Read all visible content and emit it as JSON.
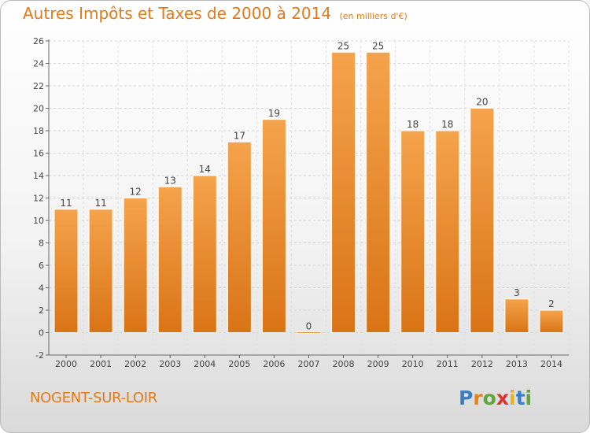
{
  "title": "Autres Impôts et Taxes de 2000 à 2014",
  "subtitle": "(en milliers d'€)",
  "location": "NOGENT-SUR-LOIR",
  "logo": {
    "text": "Proxiti",
    "letter_colors": [
      "#3a7fc4",
      "#e8831a",
      "#5ea83a",
      "#d8342b",
      "#e8b31a",
      "#3a7fc4",
      "#5ea83a"
    ]
  },
  "colors": {
    "bar_light": "#f5a34c",
    "bar_dark": "#d97416",
    "accent": "#e07b1c"
  },
  "chart_data": {
    "type": "bar",
    "title": "Autres Impôts et Taxes de 2000 à 2014",
    "subtitle": "(en milliers d'€)",
    "categories": [
      "2000",
      "2001",
      "2002",
      "2003",
      "2004",
      "2005",
      "2006",
      "2007",
      "2008",
      "2009",
      "2010",
      "2011",
      "2012",
      "2013",
      "2014"
    ],
    "values": [
      11,
      11,
      12,
      13,
      14,
      17,
      19,
      0,
      25,
      25,
      18,
      18,
      20,
      3,
      2
    ],
    "ylim": [
      -2,
      26
    ],
    "yticks": [
      -2,
      0,
      2,
      4,
      6,
      8,
      10,
      12,
      14,
      16,
      18,
      20,
      22,
      24,
      26
    ],
    "grid": true
  }
}
